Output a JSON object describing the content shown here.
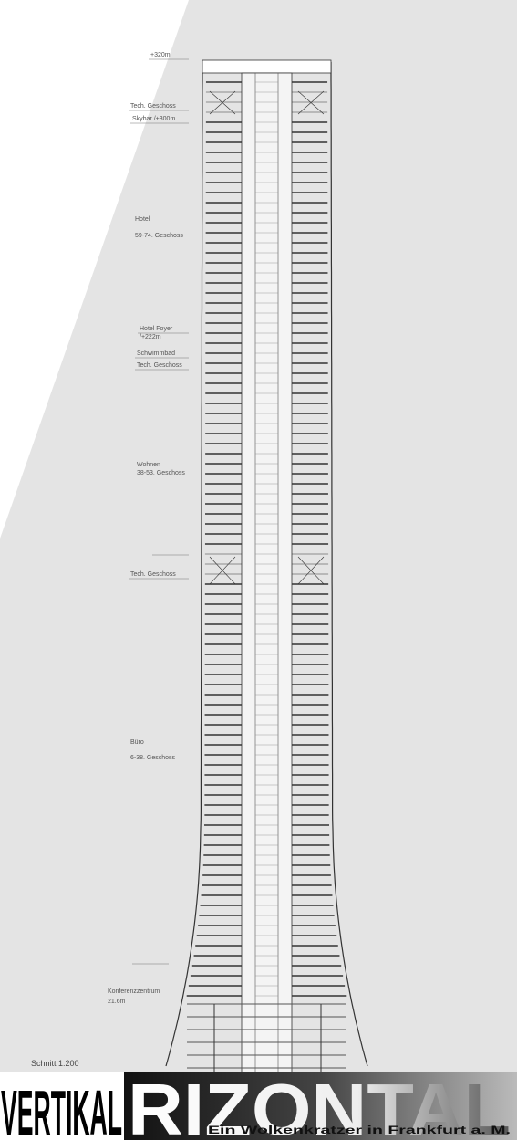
{
  "labels": [
    "+320m",
    "Tech. Geschoss",
    "Skybar /+300m",
    "Hotel",
    "59-74. Geschoss",
    "Hotel Foyer",
    "/+222m",
    "Schwimmbad",
    "Tech. Geschoss",
    "Wohnen",
    "38-53. Geschoss",
    "Tech. Geschoss",
    "Büro",
    "6-38. Geschoss",
    "Konferenzzentrum",
    "21.6m"
  ],
  "scale": "Schnitt 1:200",
  "banner": {
    "left": "VERTIKAL",
    "right": "RIZONTAL",
    "subtitle": "Ein Wolkenkratzer in  Frankfurt a. M."
  }
}
